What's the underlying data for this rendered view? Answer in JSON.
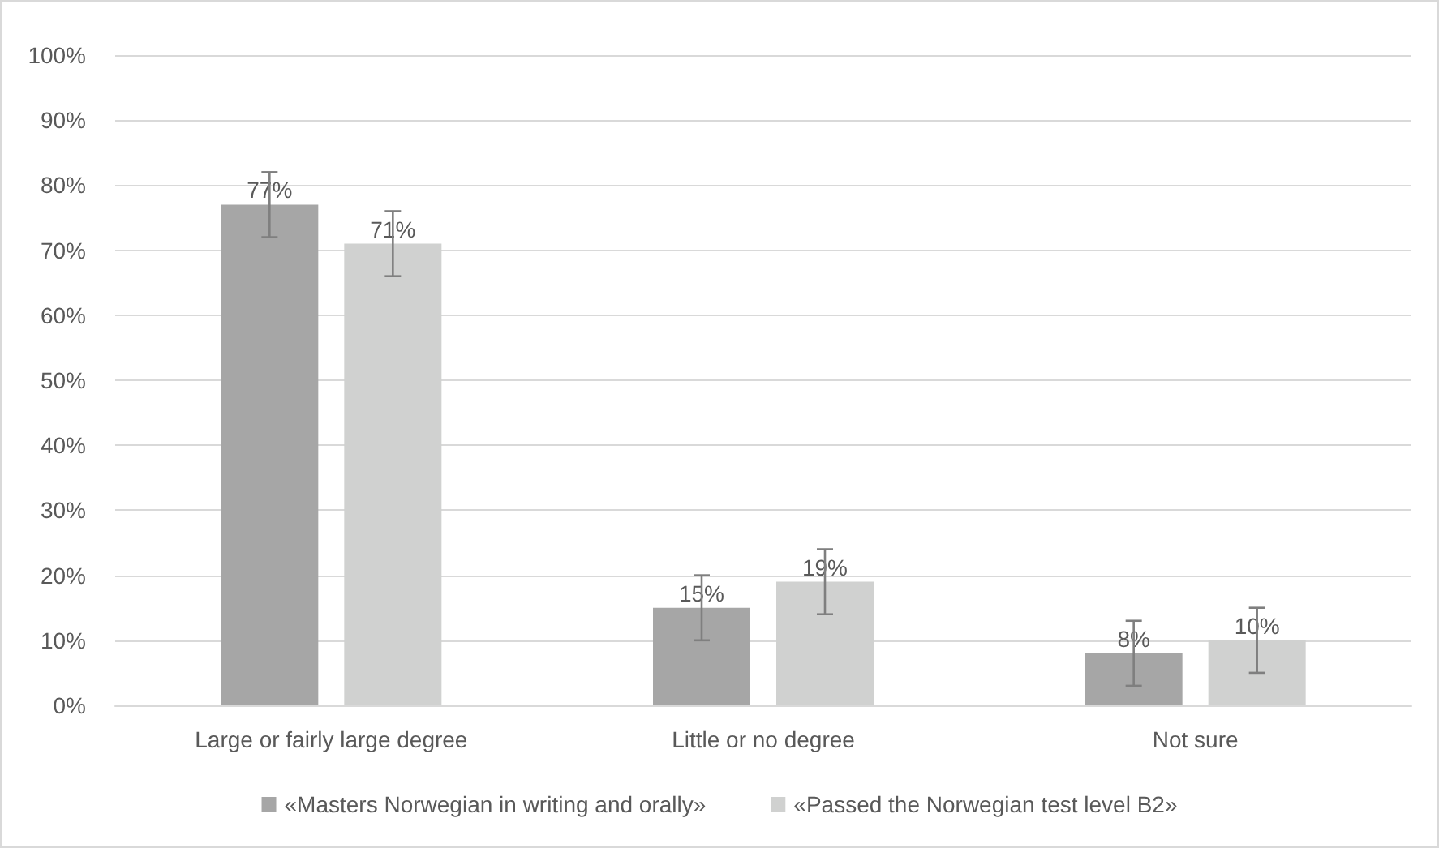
{
  "chart_data": {
    "type": "bar",
    "categories": [
      "Large or fairly large degree",
      "Little or no degree",
      "Not sure"
    ],
    "series": [
      {
        "name": "«Masters Norwegian in writing and orally»",
        "color": "#a6a6a6",
        "values": [
          77,
          15,
          8
        ],
        "errors": [
          5,
          5,
          5
        ],
        "value_labels": [
          "77%",
          "15%",
          "8%"
        ]
      },
      {
        "name": "«Passed the Norwegian test level B2»",
        "color": "#d0d1d0",
        "values": [
          71,
          19,
          10
        ],
        "errors": [
          5,
          5,
          5
        ],
        "value_labels": [
          "71%",
          "19%",
          "10%"
        ]
      }
    ],
    "ylim": [
      0,
      100
    ],
    "yticks": [
      {
        "value": 0,
        "label": "0%"
      },
      {
        "value": 10,
        "label": "10%"
      },
      {
        "value": 20,
        "label": "20%"
      },
      {
        "value": 30,
        "label": "30%"
      },
      {
        "value": 40,
        "label": "40%"
      },
      {
        "value": 50,
        "label": "50%"
      },
      {
        "value": 60,
        "label": "60%"
      },
      {
        "value": 70,
        "label": "70%"
      },
      {
        "value": 80,
        "label": "80%"
      },
      {
        "value": 90,
        "label": "90%"
      },
      {
        "value": 100,
        "label": "100%"
      }
    ],
    "grid": "y",
    "legend": "bottom"
  }
}
